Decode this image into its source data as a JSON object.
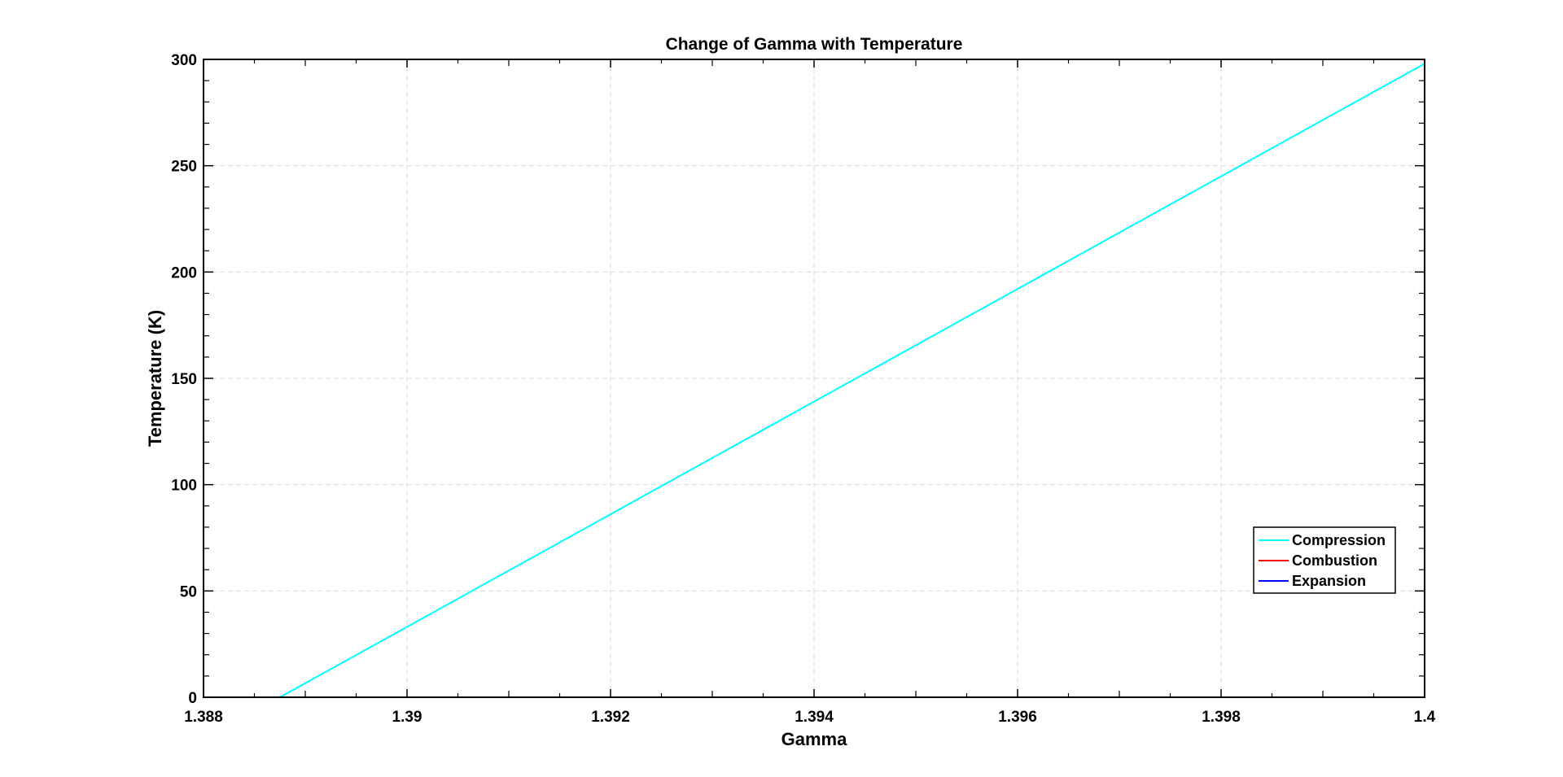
{
  "chart_data": {
    "type": "line",
    "title": "Change of Gamma with Temperature",
    "xlabel": "Gamma",
    "ylabel": "Temperature (K)",
    "xlim": [
      1.388,
      1.4
    ],
    "ylim": [
      0,
      300
    ],
    "xticks": [
      1.388,
      1.39,
      1.392,
      1.394,
      1.396,
      1.398,
      1.4
    ],
    "xtick_labels": [
      "1.388",
      "1.39",
      "1.392",
      "1.394",
      "1.396",
      "1.398",
      "1.4"
    ],
    "yticks": [
      0,
      50,
      100,
      150,
      200,
      250,
      300
    ],
    "ytick_labels": [
      "0",
      "50",
      "100",
      "150",
      "200",
      "250",
      "300"
    ],
    "grid": true,
    "legend_position": "lower-right",
    "series": [
      {
        "name": "Compression",
        "color": "#00ffff",
        "x": [
          1.38875,
          1.4
        ],
        "y": [
          0,
          298
        ]
      },
      {
        "name": "Combustion",
        "color": "#ff0000",
        "x": [],
        "y": []
      },
      {
        "name": "Expansion",
        "color": "#0000ff",
        "x": [],
        "y": []
      }
    ]
  }
}
